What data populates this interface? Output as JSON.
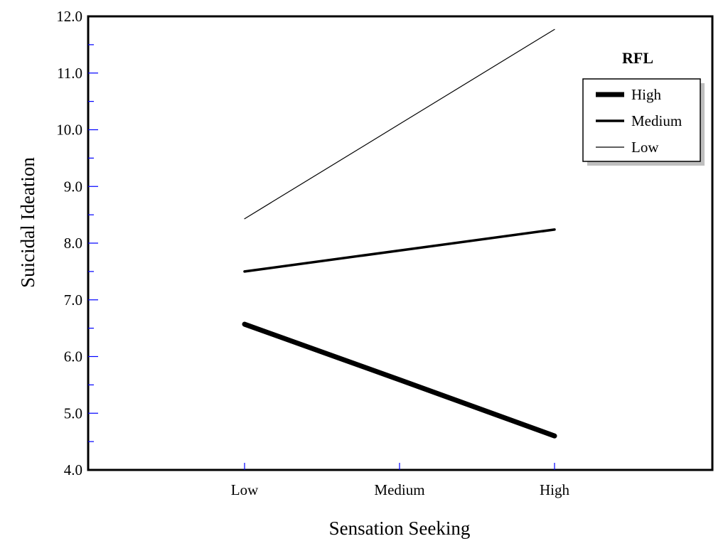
{
  "chart_data": {
    "type": "line",
    "title": "",
    "xlabel": "Sensation Seeking",
    "ylabel": "Suicidal Ideation",
    "categories": [
      "Low",
      "Medium",
      "High"
    ],
    "ylim": [
      4.0,
      12.0
    ],
    "y_ticks": [
      "4.0",
      "5.0",
      "6.0",
      "7.0",
      "8.0",
      "9.0",
      "10.0",
      "11.0",
      "12.0"
    ],
    "y_tick_values": [
      4,
      5,
      6,
      7,
      8,
      9,
      10,
      11,
      12
    ],
    "y_minor_step": 0.5,
    "grid": false,
    "legend": {
      "title": "RFL",
      "placement": "top-right"
    },
    "series": [
      {
        "name": "High",
        "values": [
          6.57,
          5.59,
          4.6
        ],
        "line_width": 7,
        "color": "#000000"
      },
      {
        "name": "Medium",
        "values": [
          7.5,
          7.87,
          8.24
        ],
        "line_width": 3.5,
        "color": "#000000"
      },
      {
        "name": "Low",
        "values": [
          8.43,
          10.1,
          11.77
        ],
        "line_width": 1.2,
        "color": "#000000"
      }
    ],
    "tick_color": "#0000ff"
  }
}
